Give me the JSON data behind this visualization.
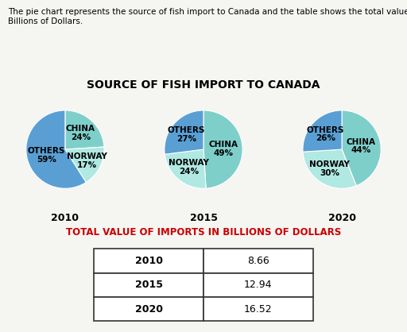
{
  "title": "SOURCE OF FISH IMPORT TO CANADA",
  "description": "The pie chart represents the source of fish import to Canada and the table shows the total value in\nBillions of Dollars.",
  "pie_data": [
    {
      "year": "2010",
      "China": 24,
      "Norway": 17,
      "Others": 59
    },
    {
      "year": "2015",
      "China": 49,
      "Norway": 24,
      "Others": 27
    },
    {
      "year": "2020",
      "China": 44,
      "Norway": 30,
      "Others": 26
    }
  ],
  "colors": {
    "China": "#7ECFCA",
    "Norway": "#B0E8E2",
    "Others": "#5A9FD4"
  },
  "table_title": "TOTAL VALUE OF IMPORTS IN BILLIONS OF DOLLARS",
  "table_data": [
    [
      "2010",
      "8.66"
    ],
    [
      "2015",
      "12.94"
    ],
    [
      "2020",
      "16.52"
    ]
  ],
  "table_title_color": "#CC0000",
  "bg_color": "#F5F5F2",
  "text_color": "#000000",
  "title_fontsize": 10,
  "label_fontsize": 7.5,
  "year_fontsize": 9,
  "desc_fontsize": 7.5,
  "table_title_fontsize": 8.5,
  "table_data_fontsize": 9
}
